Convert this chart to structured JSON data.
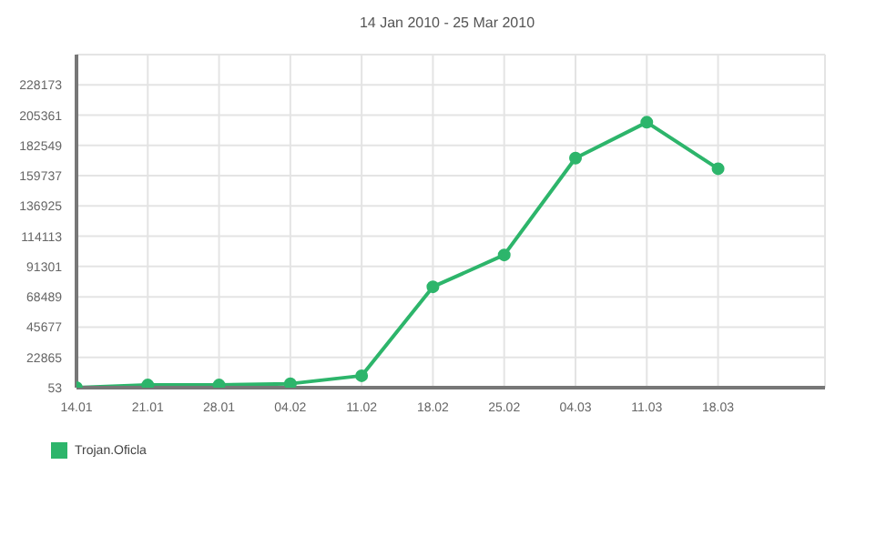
{
  "chart_data": {
    "type": "line",
    "title": "14 Jan 2010 - 25 Mar 2010",
    "categories": [
      "14.01",
      "21.01",
      "28.01",
      "04.02",
      "11.02",
      "18.02",
      "25.02",
      "04.03",
      "11.03",
      "18.03"
    ],
    "series": [
      {
        "name": "Trojan.Oficla",
        "color": "#2db56b",
        "values": [
          0,
          2000,
          2000,
          3000,
          9000,
          76000,
          100000,
          173000,
          200000,
          165000
        ]
      }
    ],
    "ylim": [
      0,
      250985
    ],
    "yticks": [
      53,
      22865,
      45677,
      68489,
      91301,
      114113,
      136925,
      159737,
      182549,
      205361,
      228173
    ],
    "grid": true,
    "legend": "bottom left",
    "marker": "circle",
    "line_style": "solid"
  }
}
